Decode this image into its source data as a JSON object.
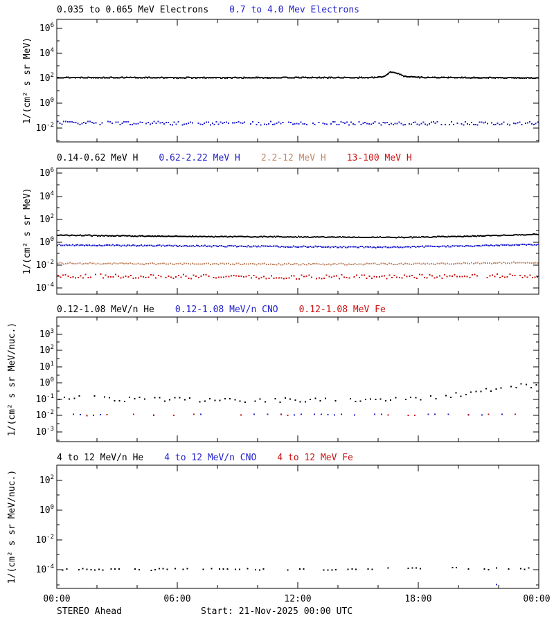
{
  "colors": {
    "black": "#000000",
    "blue": "#2222CC",
    "tan": "#C08868",
    "red": "#CC1111"
  },
  "x_axis": {
    "hours_range": [
      0,
      24
    ],
    "major_tick_hours": 6,
    "minor_tick_hours": 2,
    "tick_labels": [
      "00:00",
      "06:00",
      "12:00",
      "18:00",
      "00:00"
    ]
  },
  "footer": {
    "left": "STEREO Ahead",
    "center": "Start: 21-Nov-2025 00:00 UTC"
  },
  "chart_data": [
    {
      "type": "scatter",
      "panel": "electrons",
      "title_segments": [
        {
          "text": "0.035 to 0.065 MeV Electrons",
          "color_key": "black"
        },
        {
          "text": "0.7 to 4.0 Mev Electrons",
          "color_key": "blue"
        }
      ],
      "ylabel": "1/(cm² s sr MeV)",
      "ylog_range": [
        -3.1,
        6.7
      ],
      "yticks_labeled": [
        6,
        4,
        2,
        0,
        -2
      ],
      "ytick_minor_step": 1,
      "series": [
        {
          "name": "0.035 to 0.065 MeV Electrons",
          "color_key": "black",
          "points_per_hour": 20,
          "noise_dec": 0.035,
          "drop_prob": 0,
          "profile_log10": [
            [
              0,
              2.05
            ],
            [
              4,
              2.04
            ],
            [
              8,
              2.03
            ],
            [
              12,
              2.04
            ],
            [
              15.8,
              2.04
            ],
            [
              16.3,
              2.12
            ],
            [
              16.6,
              2.5
            ],
            [
              16.9,
              2.42
            ],
            [
              17.3,
              2.15
            ],
            [
              18,
              2.07
            ],
            [
              19,
              2.04
            ],
            [
              22,
              2.03
            ],
            [
              24,
              2.02
            ]
          ]
        },
        {
          "name": "0.7 to 4.0 Mev Electrons",
          "color_key": "blue",
          "points_per_hour": 10,
          "noise_dec": 0.14,
          "drop_prob": 0.15,
          "profile_log10": [
            [
              0,
              -1.58
            ],
            [
              6,
              -1.62
            ],
            [
              12,
              -1.6
            ],
            [
              18,
              -1.62
            ],
            [
              24,
              -1.6
            ]
          ]
        }
      ]
    },
    {
      "type": "scatter",
      "panel": "protons",
      "title_segments": [
        {
          "text": "0.14-0.62 MeV H",
          "color_key": "black"
        },
        {
          "text": "0.62-2.22 MeV H",
          "color_key": "blue"
        },
        {
          "text": "2.2-12 MeV H",
          "color_key": "tan"
        },
        {
          "text": "13-100 MeV H",
          "color_key": "red"
        }
      ],
      "ylabel": "1/(cm² s sr MeV)",
      "ylog_range": [
        -4.55,
        6.45
      ],
      "yticks_labeled": [
        6,
        4,
        2,
        0,
        -2,
        -4
      ],
      "ytick_minor_step": 1,
      "series": [
        {
          "name": "0.14-0.62 MeV H",
          "color_key": "black",
          "points_per_hour": 15,
          "noise_dec": 0.035,
          "drop_prob": 0,
          "profile_log10": [
            [
              0,
              0.6
            ],
            [
              3,
              0.55
            ],
            [
              6,
              0.5
            ],
            [
              9,
              0.47
            ],
            [
              12,
              0.45
            ],
            [
              15,
              0.42
            ],
            [
              18,
              0.42
            ],
            [
              20,
              0.5
            ],
            [
              22,
              0.58
            ],
            [
              24,
              0.68
            ]
          ]
        },
        {
          "name": "0.62-2.22 MeV H",
          "color_key": "blue",
          "points_per_hour": 12,
          "noise_dec": 0.05,
          "drop_prob": 0,
          "profile_log10": [
            [
              0,
              -0.25
            ],
            [
              6,
              -0.33
            ],
            [
              12,
              -0.4
            ],
            [
              16,
              -0.45
            ],
            [
              20,
              -0.35
            ],
            [
              24,
              -0.2
            ]
          ]
        },
        {
          "name": "2.2-12 MeV H",
          "color_key": "tan",
          "points_per_hour": 10,
          "noise_dec": 0.06,
          "drop_prob": 0,
          "profile_log10": [
            [
              0,
              -1.85
            ],
            [
              6,
              -1.9
            ],
            [
              12,
              -1.93
            ],
            [
              18,
              -1.9
            ],
            [
              24,
              -1.78
            ]
          ]
        },
        {
          "name": "13-100 MeV H",
          "color_key": "red",
          "points_per_hour": 8,
          "noise_dec": 0.17,
          "drop_prob": 0.05,
          "profile_log10": [
            [
              0,
              -2.95
            ],
            [
              12,
              -3.05
            ],
            [
              24,
              -2.95
            ]
          ]
        }
      ]
    },
    {
      "type": "scatter",
      "panel": "heavy-ions-low-energy",
      "title_segments": [
        {
          "text": "0.12-1.08 MeV/n He",
          "color_key": "black"
        },
        {
          "text": "0.12-1.08 MeV/n CNO",
          "color_key": "blue"
        },
        {
          "text": "0.12-1.08 MeV Fe",
          "color_key": "red"
        }
      ],
      "ylabel": "1/(cm² s sr MeV/nuc.)",
      "ylog_range": [
        -3.6,
        4.05
      ],
      "yticks_labeled": [
        4,
        3,
        2,
        1,
        0,
        -1,
        -2,
        -3
      ],
      "ytick_minor_step": 0.5,
      "series": [
        {
          "name": "0.12-1.08 MeV/n He",
          "color_key": "black",
          "points_per_hour": 4,
          "noise_dec": 0.14,
          "drop_prob": 0.12,
          "profile_log10": [
            [
              0,
              -0.95
            ],
            [
              1,
              -0.85
            ],
            [
              3,
              -1.0
            ],
            [
              6,
              -1.0
            ],
            [
              9,
              -1.05
            ],
            [
              12,
              -1.05
            ],
            [
              14,
              -1.0
            ],
            [
              16,
              -1.0
            ],
            [
              18,
              -0.95
            ],
            [
              19,
              -0.85
            ],
            [
              20.5,
              -0.65
            ],
            [
              22,
              -0.35
            ],
            [
              23,
              -0.12
            ],
            [
              23.4,
              -0.08
            ],
            [
              23.7,
              -0.25
            ],
            [
              24,
              -0.2
            ]
          ]
        },
        {
          "name": "0.12-1.08 MeV/n CNO",
          "color_key": "blue",
          "points_per_hour": 3,
          "noise_dec": 0.04,
          "drop_prob": 0.55,
          "profile_log10": [
            [
              0,
              -1.95
            ],
            [
              24,
              -1.93
            ]
          ]
        },
        {
          "name": "0.12-1.08 MeV Fe",
          "color_key": "red",
          "points_per_hour": 3,
          "noise_dec": 0.05,
          "drop_prob": 0.65,
          "profile_log10": [
            [
              0,
              -1.97
            ],
            [
              24,
              -1.95
            ]
          ]
        }
      ]
    },
    {
      "type": "scatter",
      "panel": "heavy-ions-high-energy",
      "title_segments": [
        {
          "text": "4 to 12 MeV/n He",
          "color_key": "black"
        },
        {
          "text": "4 to 12 MeV/n CNO",
          "color_key": "blue"
        },
        {
          "text": "4 to 12 MeV Fe",
          "color_key": "red"
        }
      ],
      "ylabel": "1/(cm² s sr MeV/nuc.)",
      "ylog_range": [
        -5.25,
        3.0
      ],
      "yticks_labeled": [
        2,
        0,
        -2,
        -4
      ],
      "ytick_minor_step": 1,
      "series": [
        {
          "name": "4 to 12 MeV/n He",
          "color_key": "black",
          "points_per_hour": 5,
          "noise_dec": 0.06,
          "drop_prob": 0.55,
          "profile_log10": [
            [
              0,
              -3.98
            ],
            [
              14,
              -3.98
            ],
            [
              16,
              -3.9
            ],
            [
              20,
              -3.88
            ],
            [
              21,
              -3.95
            ],
            [
              24,
              -3.95
            ]
          ]
        },
        {
          "name": "4 to 12 MeV/n CNO",
          "color_key": "blue",
          "points_log10": [
            [
              21.9,
              -5.0
            ]
          ]
        },
        {
          "name": "4 to 12 MeV Fe",
          "color_key": "red",
          "points_log10": []
        }
      ]
    }
  ]
}
